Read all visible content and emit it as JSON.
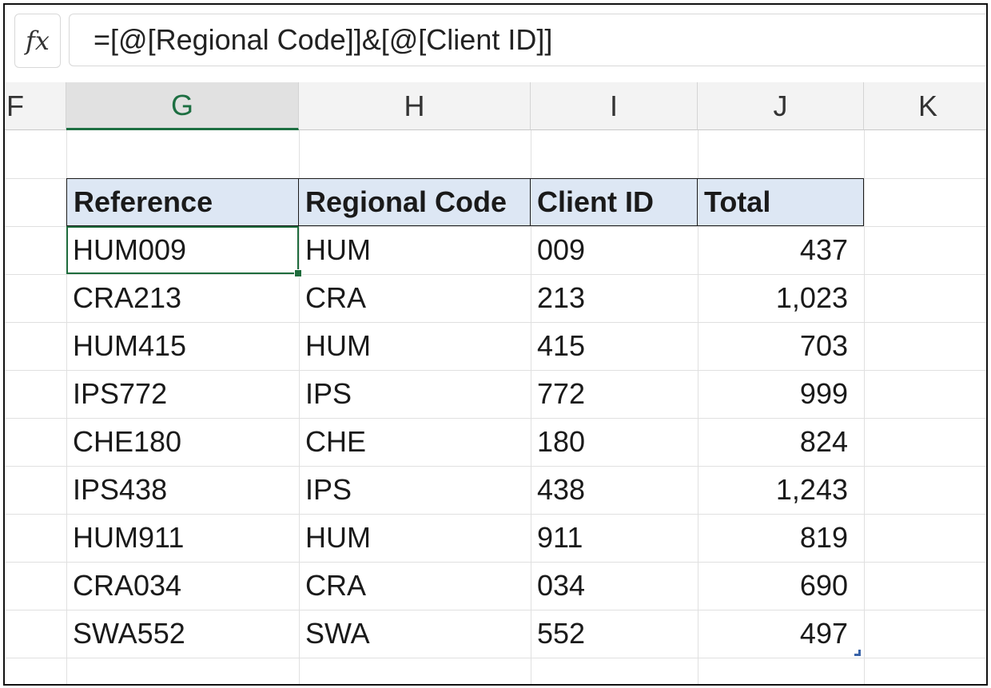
{
  "formula_bar": {
    "fx_label": "fx",
    "formula": "=[@[Regional Code]]&[@[Client ID]]"
  },
  "columns": [
    {
      "letter": "F",
      "selected": false
    },
    {
      "letter": "G",
      "selected": true
    },
    {
      "letter": "H",
      "selected": false
    },
    {
      "letter": "I",
      "selected": false
    },
    {
      "letter": "J",
      "selected": false
    },
    {
      "letter": "K",
      "selected": false
    }
  ],
  "table": {
    "headers": [
      "Reference",
      "Regional Code",
      "Client ID",
      "Total"
    ],
    "rows": [
      [
        "HUM009",
        "HUM",
        "009",
        "437"
      ],
      [
        "CRA213",
        "CRA",
        "213",
        "1,023"
      ],
      [
        "HUM415",
        "HUM",
        "415",
        "703"
      ],
      [
        "IPS772",
        "IPS",
        "772",
        "999"
      ],
      [
        "CHE180",
        "CHE",
        "180",
        "824"
      ],
      [
        "IPS438",
        "IPS",
        "438",
        "1,243"
      ],
      [
        "HUM911",
        "HUM",
        "911",
        "819"
      ],
      [
        "CRA034",
        "CRA",
        "034",
        "690"
      ],
      [
        "SWA552",
        "SWA",
        "552",
        "497"
      ]
    ]
  },
  "colors": {
    "selection_green": "#1e6b3c",
    "table_header_fill": "#dde7f4",
    "resize_handle_blue": "#3a64a8"
  }
}
